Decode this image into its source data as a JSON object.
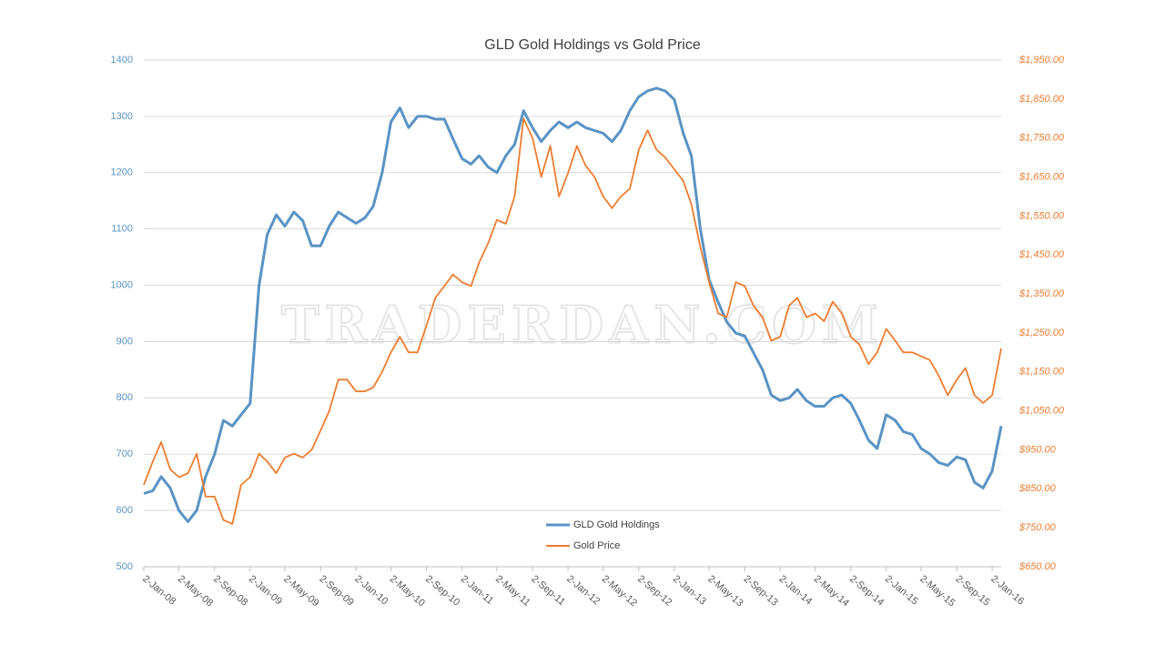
{
  "chart_data": {
    "type": "line",
    "title": "GLD Gold Holdings vs Gold Price",
    "watermark": "TRADERDAN.COM",
    "x": [
      "2008-01-02",
      "2008-02-02",
      "2008-03-02",
      "2008-04-02",
      "2008-05-02",
      "2008-06-02",
      "2008-07-02",
      "2008-08-02",
      "2008-09-02",
      "2008-10-02",
      "2008-11-02",
      "2008-12-02",
      "2009-01-02",
      "2009-02-02",
      "2009-03-02",
      "2009-04-02",
      "2009-05-02",
      "2009-06-02",
      "2009-07-02",
      "2009-08-02",
      "2009-09-02",
      "2009-10-02",
      "2009-11-02",
      "2009-12-02",
      "2010-01-02",
      "2010-02-02",
      "2010-03-02",
      "2010-04-02",
      "2010-05-02",
      "2010-06-02",
      "2010-07-02",
      "2010-08-02",
      "2010-09-02",
      "2010-10-02",
      "2010-11-02",
      "2010-12-02",
      "2011-01-02",
      "2011-02-02",
      "2011-03-02",
      "2011-04-02",
      "2011-05-02",
      "2011-06-02",
      "2011-07-02",
      "2011-08-02",
      "2011-09-02",
      "2011-10-02",
      "2011-11-02",
      "2011-12-02",
      "2012-01-02",
      "2012-02-02",
      "2012-03-02",
      "2012-04-02",
      "2012-05-02",
      "2012-06-02",
      "2012-07-02",
      "2012-08-02",
      "2012-09-02",
      "2012-10-02",
      "2012-11-02",
      "2012-12-02",
      "2013-01-02",
      "2013-02-02",
      "2013-03-02",
      "2013-04-02",
      "2013-05-02",
      "2013-06-02",
      "2013-07-02",
      "2013-08-02",
      "2013-09-02",
      "2013-10-02",
      "2013-11-02",
      "2013-12-02",
      "2014-01-02",
      "2014-02-02",
      "2014-03-02",
      "2014-04-02",
      "2014-05-02",
      "2014-06-02",
      "2014-07-02",
      "2014-08-02",
      "2014-09-02",
      "2014-10-02",
      "2014-11-02",
      "2014-12-02",
      "2015-01-02",
      "2015-02-02",
      "2015-03-02",
      "2015-04-02",
      "2015-05-02",
      "2015-06-02",
      "2015-07-02",
      "2015-08-02",
      "2015-09-02",
      "2015-10-02",
      "2015-11-02",
      "2015-12-02",
      "2016-01-02",
      "2016-02-02"
    ],
    "series": [
      {
        "name": "GLD Gold Holdings",
        "color": "#5a93c4",
        "axis": "y",
        "values": [
          630,
          635,
          660,
          640,
          600,
          580,
          600,
          660,
          700,
          760,
          750,
          770,
          790,
          1000,
          1090,
          1125,
          1105,
          1130,
          1115,
          1070,
          1070,
          1105,
          1130,
          1120,
          1110,
          1120,
          1140,
          1200,
          1290,
          1315,
          1280,
          1300,
          1300,
          1295,
          1295,
          1260,
          1225,
          1215,
          1230,
          1210,
          1200,
          1230,
          1250,
          1310,
          1280,
          1255,
          1275,
          1290,
          1280,
          1290,
          1280,
          1275,
          1270,
          1255,
          1275,
          1310,
          1335,
          1345,
          1350,
          1345,
          1330,
          1270,
          1230,
          1100,
          1010,
          970,
          935,
          915,
          910,
          880,
          850,
          805,
          795,
          800,
          815,
          795,
          785,
          785,
          800,
          805,
          790,
          760,
          725,
          710,
          770,
          760,
          740,
          735,
          710,
          700,
          685,
          680,
          695,
          690,
          650,
          640,
          670,
          750
        ]
      },
      {
        "name": "Gold Price",
        "color": "#ed7d31",
        "axis": "y2",
        "values": [
          860,
          920,
          970,
          900,
          880,
          890,
          940,
          830,
          830,
          770,
          760,
          860,
          880,
          940,
          920,
          890,
          930,
          940,
          930,
          950,
          1000,
          1050,
          1130,
          1130,
          1100,
          1100,
          1110,
          1150,
          1200,
          1240,
          1200,
          1200,
          1270,
          1340,
          1370,
          1400,
          1380,
          1370,
          1430,
          1480,
          1540,
          1530,
          1600,
          1800,
          1750,
          1650,
          1730,
          1600,
          1660,
          1730,
          1680,
          1650,
          1600,
          1570,
          1600,
          1620,
          1720,
          1770,
          1720,
          1700,
          1670,
          1640,
          1580,
          1470,
          1380,
          1300,
          1290,
          1380,
          1370,
          1320,
          1290,
          1230,
          1240,
          1320,
          1340,
          1290,
          1300,
          1280,
          1330,
          1300,
          1240,
          1220,
          1170,
          1200,
          1260,
          1230,
          1200,
          1200,
          1190,
          1180,
          1140,
          1090,
          1130,
          1160,
          1090,
          1070,
          1090,
          1210
        ]
      }
    ],
    "xlim": [
      "2008-01-02",
      "2016-02-02"
    ],
    "xticks": [
      {
        "value": "2008-01-02",
        "label": "2-Jan-08"
      },
      {
        "value": "2008-05-02",
        "label": "2-May-08"
      },
      {
        "value": "2008-09-02",
        "label": "2-Sep-08"
      },
      {
        "value": "2009-01-02",
        "label": "2-Jan-09"
      },
      {
        "value": "2009-05-02",
        "label": "2-May-09"
      },
      {
        "value": "2009-09-02",
        "label": "2-Sep-09"
      },
      {
        "value": "2010-01-02",
        "label": "2-Jan-10"
      },
      {
        "value": "2010-05-02",
        "label": "2-May-10"
      },
      {
        "value": "2010-09-02",
        "label": "2-Sep-10"
      },
      {
        "value": "2011-01-02",
        "label": "2-Jan-11"
      },
      {
        "value": "2011-05-02",
        "label": "2-May-11"
      },
      {
        "value": "2011-09-02",
        "label": "2-Sep-11"
      },
      {
        "value": "2012-01-02",
        "label": "2-Jan-12"
      },
      {
        "value": "2012-05-02",
        "label": "2-May-12"
      },
      {
        "value": "2012-09-02",
        "label": "2-Sep-12"
      },
      {
        "value": "2013-01-02",
        "label": "2-Jan-13"
      },
      {
        "value": "2013-05-02",
        "label": "2-May-13"
      },
      {
        "value": "2013-09-02",
        "label": "2-Sep-13"
      },
      {
        "value": "2014-01-02",
        "label": "2-Jan-14"
      },
      {
        "value": "2014-05-02",
        "label": "2-May-14"
      },
      {
        "value": "2014-09-02",
        "label": "2-Sep-14"
      },
      {
        "value": "2015-01-02",
        "label": "2-Jan-15"
      },
      {
        "value": "2015-05-02",
        "label": "2-May-15"
      },
      {
        "value": "2015-09-02",
        "label": "2-Sep-15"
      },
      {
        "value": "2016-01-02",
        "label": "2-Jan-16"
      }
    ],
    "ylim": [
      500,
      1400
    ],
    "yticks": [
      500,
      600,
      700,
      800,
      900,
      1000,
      1100,
      1200,
      1300,
      1400
    ],
    "y2lim": [
      650,
      1950
    ],
    "y2ticks": [
      {
        "value": 650,
        "label": "$650.00"
      },
      {
        "value": 750,
        "label": "$750.00"
      },
      {
        "value": 850,
        "label": "$850.00"
      },
      {
        "value": 950,
        "label": "$950.00"
      },
      {
        "value": 1050,
        "label": "$1,050.00"
      },
      {
        "value": 1150,
        "label": "$1,150.00"
      },
      {
        "value": 1250,
        "label": "$1,250.00"
      },
      {
        "value": 1350,
        "label": "$1,350.00"
      },
      {
        "value": 1450,
        "label": "$1,450.00"
      },
      {
        "value": 1550,
        "label": "$1,550.00"
      },
      {
        "value": 1650,
        "label": "$1,650.00"
      },
      {
        "value": 1750,
        "label": "$1,750.00"
      },
      {
        "value": 1850,
        "label": "$1,850.00"
      },
      {
        "value": 1950,
        "label": "$1,950.00"
      }
    ],
    "grid": true,
    "legend": "bottom"
  }
}
